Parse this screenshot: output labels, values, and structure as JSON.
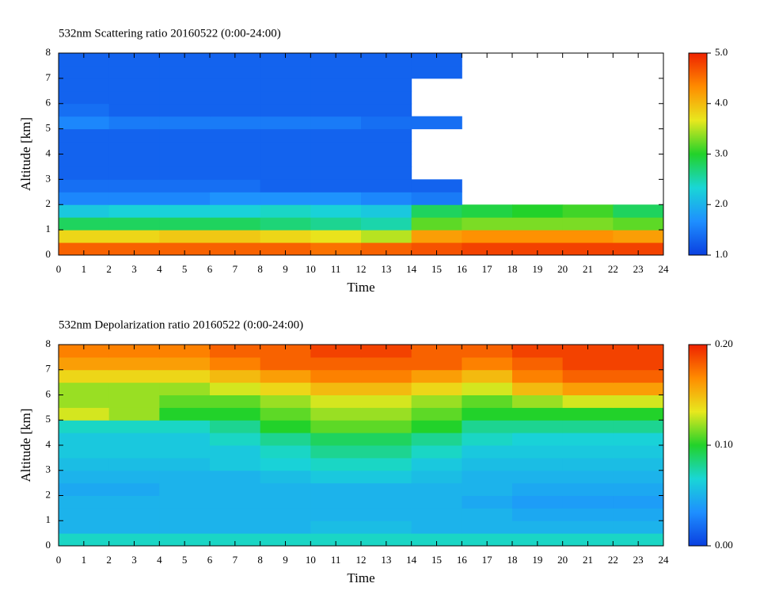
{
  "chart_data": [
    {
      "type": "heatmap",
      "title": "532nm Scattering ratio  20160522 (0:00-24:00)",
      "xlabel": "Time",
      "ylabel": "Altitude [km]",
      "xlim": [
        0,
        24
      ],
      "xticks": [
        0,
        1,
        2,
        3,
        4,
        5,
        6,
        7,
        8,
        9,
        10,
        11,
        12,
        13,
        14,
        15,
        16,
        17,
        18,
        19,
        20,
        21,
        22,
        23,
        24
      ],
      "ylim": [
        0,
        8
      ],
      "yticks": [
        0,
        1,
        2,
        3,
        4,
        5,
        6,
        7,
        8
      ],
      "zlim": [
        1,
        5
      ],
      "zticks": [
        {
          "value": 1,
          "label": "1.0"
        },
        {
          "value": 2,
          "label": "2.0"
        },
        {
          "value": 3,
          "label": "3.0"
        },
        {
          "value": 4,
          "label": "4.0"
        },
        {
          "value": 5,
          "label": "5.0"
        }
      ],
      "colormap": [
        "#0a3fe0",
        "#1e8fff",
        "#19d6d6",
        "#22d22a",
        "#e8e81e",
        "#ff8c00",
        "#ee2200"
      ],
      "z": [
        [
          4.6,
          4.6,
          4.6,
          4.6,
          4.6,
          4.5,
          4.6,
          4.7,
          4.8,
          4.8,
          4.8,
          4.8
        ],
        [
          3.8,
          3.8,
          3.9,
          3.9,
          3.8,
          3.7,
          3.5,
          4.2,
          4.3,
          4.3,
          4.3,
          4.2
        ],
        [
          2.8,
          2.8,
          2.8,
          2.8,
          2.7,
          2.6,
          2.5,
          3.2,
          3.3,
          3.3,
          3.3,
          3.2
        ],
        [
          2.2,
          2.3,
          2.3,
          2.3,
          2.4,
          2.3,
          2.2,
          2.8,
          2.9,
          3.0,
          3.1,
          2.8
        ],
        [
          1.6,
          1.6,
          1.6,
          1.7,
          1.7,
          1.7,
          1.6,
          1.5,
          null,
          null,
          null,
          null
        ],
        [
          1.4,
          1.4,
          1.4,
          1.4,
          1.3,
          1.3,
          1.3,
          1.3,
          null,
          null,
          null,
          null
        ],
        [
          1.3,
          1.3,
          1.3,
          1.3,
          1.3,
          1.3,
          1.3,
          null,
          null,
          null,
          null,
          null
        ],
        [
          1.3,
          1.3,
          1.3,
          1.3,
          1.3,
          1.3,
          1.3,
          null,
          null,
          null,
          null,
          null
        ],
        [
          1.3,
          1.3,
          1.3,
          1.3,
          1.3,
          1.3,
          1.3,
          null,
          null,
          null,
          null,
          null
        ],
        [
          1.3,
          1.3,
          1.3,
          1.3,
          1.3,
          1.3,
          1.3,
          null,
          null,
          null,
          null,
          null
        ],
        [
          1.6,
          1.5,
          1.5,
          1.5,
          1.5,
          1.5,
          1.4,
          1.4,
          null,
          null,
          null,
          null
        ],
        [
          1.4,
          1.3,
          1.3,
          1.3,
          1.3,
          1.3,
          1.3,
          null,
          null,
          null,
          null,
          null
        ],
        [
          1.3,
          1.3,
          1.3,
          1.3,
          1.3,
          1.3,
          1.3,
          null,
          null,
          null,
          null,
          null
        ],
        [
          1.3,
          1.3,
          1.3,
          1.3,
          1.3,
          1.3,
          1.3,
          null,
          null,
          null,
          null,
          null
        ],
        [
          1.3,
          1.3,
          1.3,
          1.3,
          1.3,
          1.3,
          1.3,
          1.3,
          null,
          null,
          null,
          null
        ],
        [
          1.3,
          1.3,
          1.3,
          1.3,
          1.3,
          1.3,
          1.3,
          1.3,
          null,
          null,
          null,
          null
        ]
      ]
    },
    {
      "type": "heatmap",
      "title": "532nm Depolarization ratio  20160522 (0:00-24:00)",
      "xlabel": "Time",
      "ylabel": "Altitude [km]",
      "xlim": [
        0,
        24
      ],
      "xticks": [
        0,
        1,
        2,
        3,
        4,
        5,
        6,
        7,
        8,
        9,
        10,
        11,
        12,
        13,
        14,
        15,
        16,
        17,
        18,
        19,
        20,
        21,
        22,
        23,
        24
      ],
      "ylim": [
        0,
        8
      ],
      "yticks": [
        0,
        1,
        2,
        3,
        4,
        5,
        6,
        7,
        8
      ],
      "zlim": [
        0,
        0.2
      ],
      "zticks": [
        {
          "value": 0,
          "label": "0.00"
        },
        {
          "value": 0.1,
          "label": "0.10"
        },
        {
          "value": 0.2,
          "label": "0.20"
        }
      ],
      "colormap": [
        "#0a3fe0",
        "#1e8fff",
        "#19d6d6",
        "#22d22a",
        "#e8e81e",
        "#ff8c00",
        "#ee2200"
      ],
      "z": [
        [
          0.07,
          0.07,
          0.07,
          0.07,
          0.07,
          0.07,
          0.07,
          0.07,
          0.07,
          0.07,
          0.07,
          0.07
        ],
        [
          0.05,
          0.05,
          0.05,
          0.05,
          0.05,
          0.055,
          0.055,
          0.05,
          0.05,
          0.05,
          0.05,
          0.05
        ],
        [
          0.05,
          0.05,
          0.05,
          0.05,
          0.05,
          0.05,
          0.05,
          0.05,
          0.05,
          0.045,
          0.045,
          0.045
        ],
        [
          0.05,
          0.05,
          0.05,
          0.05,
          0.05,
          0.05,
          0.05,
          0.05,
          0.045,
          0.04,
          0.04,
          0.04
        ],
        [
          0.045,
          0.045,
          0.05,
          0.05,
          0.05,
          0.05,
          0.05,
          0.05,
          0.05,
          0.045,
          0.045,
          0.045
        ],
        [
          0.05,
          0.05,
          0.05,
          0.05,
          0.055,
          0.06,
          0.06,
          0.055,
          0.05,
          0.05,
          0.05,
          0.05
        ],
        [
          0.055,
          0.055,
          0.055,
          0.06,
          0.065,
          0.07,
          0.07,
          0.06,
          0.055,
          0.055,
          0.055,
          0.055
        ],
        [
          0.06,
          0.06,
          0.06,
          0.06,
          0.07,
          0.08,
          0.08,
          0.07,
          0.06,
          0.06,
          0.06,
          0.06
        ],
        [
          0.06,
          0.06,
          0.06,
          0.07,
          0.08,
          0.09,
          0.09,
          0.08,
          0.07,
          0.065,
          0.065,
          0.065
        ],
        [
          0.07,
          0.07,
          0.07,
          0.08,
          0.1,
          0.11,
          0.11,
          0.1,
          0.08,
          0.08,
          0.08,
          0.08
        ],
        [
          0.13,
          0.12,
          0.1,
          0.1,
          0.11,
          0.12,
          0.12,
          0.11,
          0.1,
          0.1,
          0.1,
          0.1
        ],
        [
          0.12,
          0.12,
          0.11,
          0.11,
          0.12,
          0.13,
          0.13,
          0.12,
          0.11,
          0.12,
          0.13,
          0.13
        ],
        [
          0.12,
          0.12,
          0.12,
          0.13,
          0.14,
          0.15,
          0.15,
          0.14,
          0.13,
          0.15,
          0.16,
          0.16
        ],
        [
          0.14,
          0.14,
          0.14,
          0.15,
          0.16,
          0.17,
          0.17,
          0.16,
          0.15,
          0.17,
          0.18,
          0.18
        ],
        [
          0.16,
          0.16,
          0.16,
          0.17,
          0.18,
          0.18,
          0.18,
          0.18,
          0.17,
          0.18,
          0.19,
          0.19
        ],
        [
          0.17,
          0.17,
          0.17,
          0.18,
          0.18,
          0.19,
          0.19,
          0.18,
          0.18,
          0.19,
          0.19,
          0.19
        ]
      ]
    }
  ]
}
